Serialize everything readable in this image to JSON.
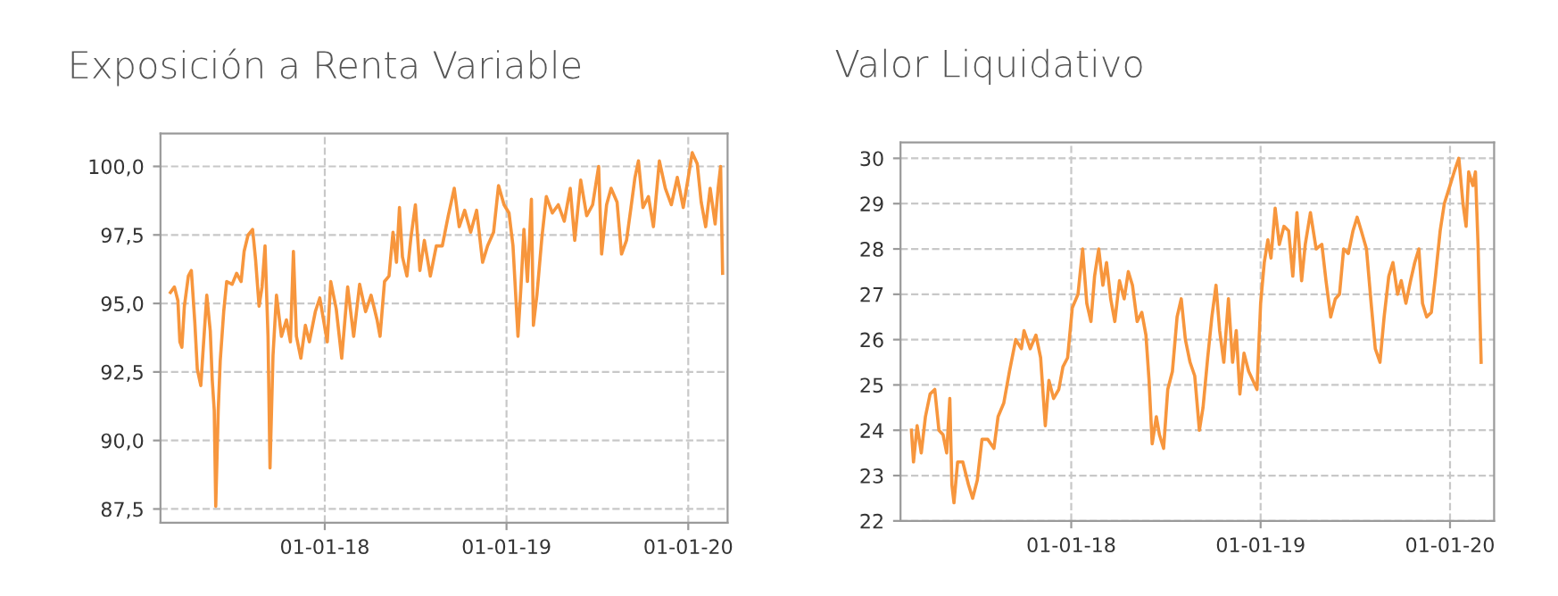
{
  "chart_data": [
    {
      "type": "line",
      "title": "Exposición a Renta Variable",
      "grid": true,
      "xlim": [
        "2017-02-05",
        "2020-03-20"
      ],
      "ylim": [
        87.0,
        101.2
      ],
      "xticks": [
        {
          "value": "2018-01-01",
          "label": "01-01-18"
        },
        {
          "value": "2019-01-01",
          "label": "01-01-19"
        },
        {
          "value": "2020-01-01",
          "label": "01-01-20"
        }
      ],
      "yticks": [
        {
          "value": 87.5,
          "label": "87,5"
        },
        {
          "value": 90.0,
          "label": "90,0"
        },
        {
          "value": 92.5,
          "label": "92,5"
        },
        {
          "value": 95.0,
          "label": "95,0"
        },
        {
          "value": 97.5,
          "label": "97,5"
        },
        {
          "value": 100.0,
          "label": "100,0"
        }
      ],
      "series": [
        {
          "color": "#f7963d",
          "x": [
            "2017-02-25",
            "2017-03-05",
            "2017-03-12",
            "2017-03-16",
            "2017-03-20",
            "2017-03-25",
            "2017-04-02",
            "2017-04-08",
            "2017-04-15",
            "2017-04-20",
            "2017-04-27",
            "2017-05-02",
            "2017-05-09",
            "2017-05-16",
            "2017-05-20",
            "2017-05-24",
            "2017-05-27",
            "2017-06-01",
            "2017-06-05",
            "2017-06-12",
            "2017-06-18",
            "2017-06-29",
            "2017-07-08",
            "2017-07-17",
            "2017-07-23",
            "2017-07-31",
            "2017-08-09",
            "2017-08-15",
            "2017-08-22",
            "2017-08-28",
            "2017-09-03",
            "2017-09-09",
            "2017-09-13",
            "2017-09-19",
            "2017-09-26",
            "2017-10-06",
            "2017-10-16",
            "2017-10-24",
            "2017-10-30",
            "2017-11-05",
            "2017-11-14",
            "2017-11-23",
            "2017-12-01",
            "2017-12-13",
            "2017-12-22",
            "2018-01-06",
            "2018-01-13",
            "2018-01-24",
            "2018-02-04",
            "2018-02-16",
            "2018-02-28",
            "2018-03-12",
            "2018-03-24",
            "2018-04-04",
            "2018-04-16",
            "2018-04-22",
            "2018-05-01",
            "2018-05-10",
            "2018-05-18",
            "2018-05-25",
            "2018-05-31",
            "2018-06-06",
            "2018-06-15",
            "2018-06-23",
            "2018-07-02",
            "2018-07-11",
            "2018-07-20",
            "2018-08-01",
            "2018-08-13",
            "2018-08-25",
            "2018-09-06",
            "2018-09-18",
            "2018-09-28",
            "2018-10-09",
            "2018-10-21",
            "2018-11-02",
            "2018-11-14",
            "2018-11-24",
            "2018-12-06",
            "2018-12-16",
            "2018-12-27",
            "2019-01-06",
            "2019-01-14",
            "2019-01-24",
            "2019-01-30",
            "2019-02-05",
            "2019-02-12",
            "2019-02-20",
            "2019-02-24",
            "2019-03-03",
            "2019-03-13",
            "2019-03-22",
            "2019-04-03",
            "2019-04-15",
            "2019-04-27",
            "2019-05-09",
            "2019-05-18",
            "2019-05-30",
            "2019-06-11",
            "2019-06-23",
            "2019-07-05",
            "2019-07-11",
            "2019-07-21",
            "2019-07-30",
            "2019-08-11",
            "2019-08-20",
            "2019-08-30",
            "2019-09-08",
            "2019-09-16",
            "2019-09-23",
            "2019-10-02",
            "2019-10-13",
            "2019-10-23",
            "2019-11-04",
            "2019-11-16",
            "2019-11-28",
            "2019-12-10",
            "2019-12-22",
            "2020-01-01",
            "2020-01-09",
            "2020-01-19",
            "2020-01-27",
            "2020-02-05",
            "2020-02-14",
            "2020-02-24",
            "2020-03-01",
            "2020-03-06",
            "2020-03-10"
          ],
          "values": [
            95.4,
            95.6,
            95.1,
            93.6,
            93.4,
            94.9,
            96.0,
            96.2,
            94.3,
            92.6,
            92.0,
            93.4,
            95.3,
            94.0,
            92.2,
            91.1,
            87.6,
            91.1,
            92.9,
            94.7,
            95.8,
            95.7,
            96.1,
            95.8,
            96.9,
            97.5,
            97.7,
            96.6,
            94.9,
            95.6,
            97.1,
            93.8,
            89.0,
            93.1,
            95.3,
            93.8,
            94.4,
            93.6,
            96.9,
            93.8,
            93.0,
            94.2,
            93.6,
            94.7,
            95.2,
            93.6,
            95.8,
            94.8,
            93.0,
            95.6,
            93.8,
            95.7,
            94.7,
            95.3,
            94.4,
            93.8,
            95.8,
            96.0,
            97.6,
            96.5,
            98.5,
            96.7,
            96.0,
            97.4,
            98.6,
            96.2,
            97.3,
            96.0,
            97.1,
            97.1,
            98.2,
            99.2,
            97.8,
            98.4,
            97.6,
            98.4,
            96.5,
            97.1,
            97.6,
            99.3,
            98.6,
            98.3,
            97.1,
            93.8,
            95.6,
            97.7,
            95.8,
            98.8,
            94.2,
            95.3,
            97.4,
            98.9,
            98.3,
            98.6,
            98.0,
            99.2,
            97.3,
            99.5,
            98.2,
            98.6,
            100.0,
            96.8,
            98.6,
            99.2,
            98.7,
            96.8,
            97.3,
            98.5,
            99.6,
            100.2,
            98.5,
            98.9,
            97.8,
            100.2,
            99.2,
            98.6,
            99.6,
            98.5,
            99.6,
            100.5,
            100.1,
            98.7,
            97.8,
            99.2,
            97.9,
            99.2,
            100.0,
            96.1
          ]
        }
      ]
    },
    {
      "type": "line",
      "title": "Valor Liquidativo",
      "grid": true,
      "xlim": [
        "2017-02-06",
        "2020-03-26"
      ],
      "ylim": [
        22,
        30.35
      ],
      "xticks": [
        {
          "value": "2018-01-01",
          "label": "01-01-18"
        },
        {
          "value": "2019-01-01",
          "label": "01-01-19"
        },
        {
          "value": "2020-01-01",
          "label": "01-01-20"
        }
      ],
      "yticks": [
        22,
        23,
        24,
        25,
        26,
        27,
        28,
        29,
        30
      ],
      "series": [
        {
          "color": "#f7963d",
          "x": [
            "2017-02-27",
            "2017-03-03",
            "2017-03-10",
            "2017-03-18",
            "2017-03-26",
            "2017-04-04",
            "2017-04-13",
            "2017-04-21",
            "2017-04-29",
            "2017-05-06",
            "2017-05-12",
            "2017-05-16",
            "2017-05-20",
            "2017-05-27",
            "2017-06-06",
            "2017-06-17",
            "2017-06-25",
            "2017-07-04",
            "2017-07-13",
            "2017-07-24",
            "2017-08-05",
            "2017-08-13",
            "2017-08-24",
            "2017-09-04",
            "2017-09-16",
            "2017-09-27",
            "2017-10-02",
            "2017-10-14",
            "2017-10-25",
            "2017-11-03",
            "2017-11-12",
            "2017-11-19",
            "2017-11-28",
            "2017-12-08",
            "2017-12-16",
            "2017-12-25",
            "2018-01-03",
            "2018-01-14",
            "2018-01-23",
            "2018-01-31",
            "2018-02-08",
            "2018-02-15",
            "2018-02-23",
            "2018-03-03",
            "2018-03-10",
            "2018-03-18",
            "2018-03-26",
            "2018-04-04",
            "2018-04-13",
            "2018-04-21",
            "2018-04-29",
            "2018-05-08",
            "2018-05-17",
            "2018-05-25",
            "2018-05-31",
            "2018-06-06",
            "2018-06-14",
            "2018-06-20",
            "2018-06-28",
            "2018-07-06",
            "2018-07-15",
            "2018-07-24",
            "2018-08-01",
            "2018-08-09",
            "2018-08-18",
            "2018-08-27",
            "2018-09-05",
            "2018-09-12",
            "2018-09-21",
            "2018-09-29",
            "2018-10-07",
            "2018-10-14",
            "2018-10-22",
            "2018-10-31",
            "2018-11-08",
            "2018-11-15",
            "2018-11-22",
            "2018-11-30",
            "2018-12-09",
            "2018-12-17",
            "2018-12-25",
            "2019-01-01",
            "2019-01-08",
            "2019-01-15",
            "2019-01-21",
            "2019-01-29",
            "2019-02-06",
            "2019-02-15",
            "2019-02-24",
            "2019-03-04",
            "2019-03-12",
            "2019-03-21",
            "2019-03-28",
            "2019-04-07",
            "2019-04-18",
            "2019-04-29",
            "2019-05-07",
            "2019-05-16",
            "2019-05-25",
            "2019-06-02",
            "2019-06-10",
            "2019-06-19",
            "2019-06-28",
            "2019-07-06",
            "2019-07-14",
            "2019-07-24",
            "2019-08-02",
            "2019-08-10",
            "2019-08-19",
            "2019-08-27",
            "2019-09-05",
            "2019-09-13",
            "2019-09-22",
            "2019-09-29",
            "2019-10-08",
            "2019-10-17",
            "2019-10-25",
            "2019-11-02",
            "2019-11-09",
            "2019-11-17",
            "2019-11-26",
            "2019-12-04",
            "2019-12-13",
            "2019-12-21",
            "2020-01-01",
            "2020-01-09",
            "2020-01-18",
            "2020-01-26",
            "2020-02-01",
            "2020-02-06",
            "2020-02-14",
            "2020-02-19",
            "2020-02-24",
            "2020-03-01"
          ],
          "values": [
            24.0,
            23.3,
            24.1,
            23.5,
            24.3,
            24.8,
            24.9,
            24.0,
            23.9,
            23.5,
            24.7,
            22.8,
            22.4,
            23.3,
            23.3,
            22.8,
            22.5,
            22.9,
            23.8,
            23.8,
            23.6,
            24.3,
            24.6,
            25.3,
            26.0,
            25.8,
            26.2,
            25.8,
            26.1,
            25.6,
            24.1,
            25.1,
            24.7,
            24.9,
            25.4,
            25.6,
            26.7,
            27.0,
            28.0,
            26.8,
            26.4,
            27.4,
            28.0,
            27.2,
            27.7,
            26.9,
            26.4,
            27.3,
            26.9,
            27.5,
            27.2,
            26.4,
            26.6,
            26.1,
            25.1,
            23.7,
            24.3,
            23.9,
            23.6,
            24.9,
            25.3,
            26.5,
            26.9,
            26.0,
            25.5,
            25.2,
            24.0,
            24.5,
            25.6,
            26.5,
            27.2,
            26.2,
            25.5,
            26.9,
            25.5,
            26.2,
            24.8,
            25.7,
            25.3,
            25.1,
            24.9,
            26.8,
            27.7,
            28.2,
            27.8,
            28.9,
            28.1,
            28.5,
            28.4,
            27.4,
            28.8,
            27.3,
            28.1,
            28.8,
            28.0,
            28.1,
            27.3,
            26.5,
            26.9,
            27.0,
            28.0,
            27.9,
            28.4,
            28.7,
            28.4,
            28.0,
            26.8,
            25.8,
            25.5,
            26.5,
            27.4,
            27.7,
            27.0,
            27.3,
            26.8,
            27.3,
            27.7,
            28.0,
            26.8,
            26.5,
            26.6,
            27.4,
            28.4,
            29.0,
            29.4,
            29.7,
            30.0,
            29.0,
            28.5,
            29.7,
            29.4,
            29.7,
            28.1,
            25.5
          ]
        }
      ]
    }
  ]
}
